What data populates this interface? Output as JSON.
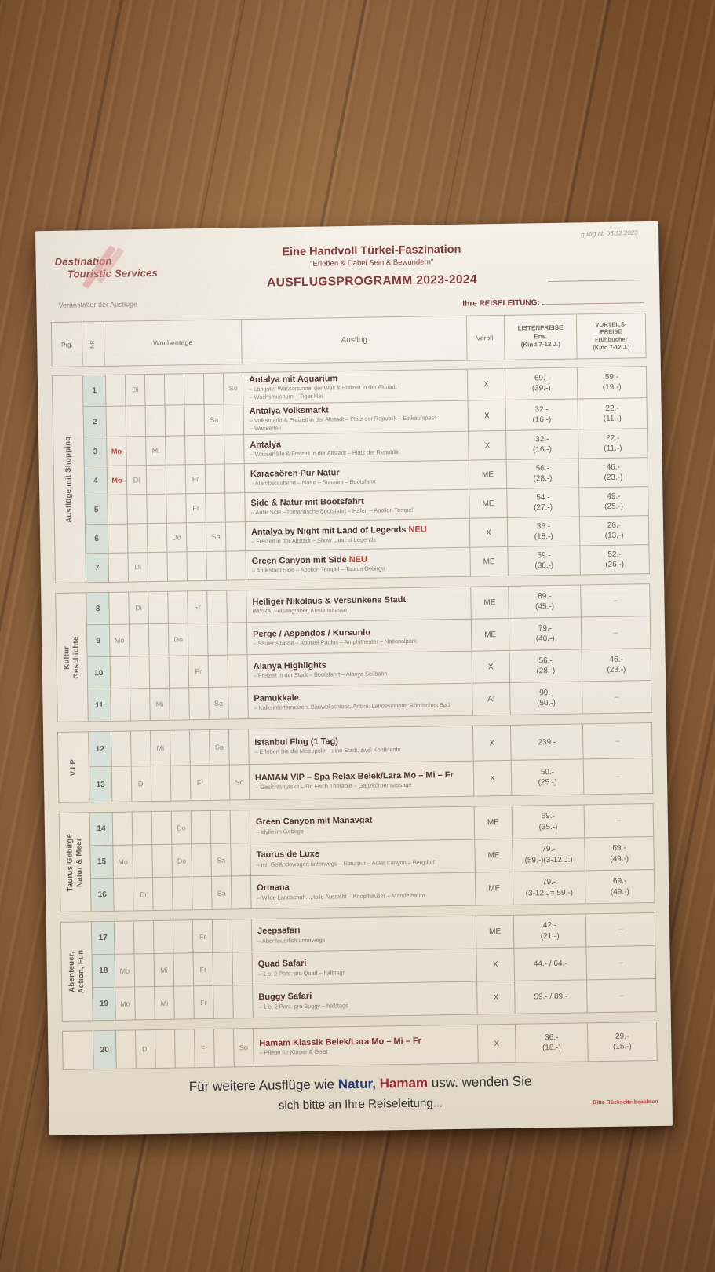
{
  "colors": {
    "maroon": "#7d3030",
    "red": "#c13a34",
    "blue": "#1d3a86",
    "hamam_red": "#9c2430",
    "paper": "#f2ede3",
    "wood": "#8a5a33",
    "nr_tint": "#dde8e0",
    "table_line": "#b6ac9b"
  },
  "header": {
    "valid_note": "gültig ab 05.12.2023",
    "logo_line1": "Destination",
    "logo_line2": "Touristic Services",
    "logo_sub": "Veranstalter der Ausflüge",
    "title1": "Eine Handvoll Türkei-Faszination",
    "title2": "“Erleben & Dabei Sein & Bewundern”",
    "title3": "AUSFLUGSPROGRAMM 2023-2024",
    "reiseleitung_label": "Ihre REISELEITUNG:"
  },
  "table": {
    "neu_label": "NEU",
    "columns": {
      "prg": "Prg.",
      "nr": "NR",
      "wochentage": "Wochentage",
      "ausflug": "Ausflug",
      "verpfl": "Verpfl.",
      "listenpreise": "LISTENPREISE\nErw.\n(Kind 7-12 J.)",
      "vorteilspreise": "VORTEILS-\nPREISE\nFrühbucher\n(Kind 7-12 J.)"
    }
  },
  "sections": [
    {
      "group": "Ausflüge mit Shopping",
      "rows": [
        {
          "nr": "1",
          "days": [
            "",
            "Di",
            "",
            "",
            "",
            "",
            "So"
          ],
          "title": "Antalya mit Aquarium",
          "desc": [
            "– Längster Wassertunnel der Welt & Freizeit in der Altstadt",
            "– Wachsmuseum – Tiger Hai"
          ],
          "verpfl": "X",
          "listen": [
            "69.-",
            "(39.-)"
          ],
          "vorteil": [
            "59.-",
            "(19.-)"
          ]
        },
        {
          "nr": "2",
          "days": [
            "",
            "",
            "",
            "",
            "",
            "Sa",
            ""
          ],
          "title": "Antalya Volksmarkt",
          "desc": [
            "– Volksmarkt & Freizeit in der Altstadt – Platz der Republik – Einkaufspass",
            "– Wasserfall"
          ],
          "verpfl": "X",
          "listen": [
            "32.-",
            "(16.-)"
          ],
          "vorteil": [
            "22.-",
            "(11.-)"
          ]
        },
        {
          "nr": "3",
          "days": [
            "Mo",
            "",
            "Mi",
            "",
            "",
            "",
            ""
          ],
          "red": [
            0
          ],
          "title": "Antalya",
          "desc": [
            "– Wasserfälle & Freizeit in der Altstadt – Platz der Republik"
          ],
          "verpfl": "X",
          "listen": [
            "32.-",
            "(16.-)"
          ],
          "vorteil": [
            "22.-",
            "(11.-)"
          ]
        },
        {
          "nr": "4",
          "days": [
            "Mo",
            "Di",
            "",
            "",
            "Fr",
            "",
            ""
          ],
          "red": [
            0
          ],
          "title": "Karacaören Pur Natur",
          "desc": [
            "– Atemberaubend – Natur – Stausee – Bootsfahrt"
          ],
          "verpfl": "ME",
          "listen": [
            "56.-",
            "(28.-)"
          ],
          "vorteil": [
            "46.-",
            "(23.-)"
          ]
        },
        {
          "nr": "5",
          "days": [
            "",
            "",
            "",
            "",
            "Fr",
            "",
            ""
          ],
          "title": "Side & Natur mit Bootsfahrt",
          "desc": [
            "– Antik Side – romantische Bootsfahrt – Hafen – Apollon Tempel"
          ],
          "verpfl": "ME",
          "listen": [
            "54.-",
            "(27.-)"
          ],
          "vorteil": [
            "49.-",
            "(25.-)"
          ]
        },
        {
          "nr": "6",
          "days": [
            "",
            "",
            "",
            "Do",
            "",
            "Sa",
            ""
          ],
          "title": "Antalya by Night mit Land of Legends",
          "neu": true,
          "desc": [
            "– Freizeit in der Altstadt – Show Land of Legends"
          ],
          "verpfl": "X",
          "listen": [
            "36.-",
            "(18.-)"
          ],
          "vorteil": [
            "26.-",
            "(13.-)"
          ]
        },
        {
          "nr": "7",
          "days": [
            "",
            "Di",
            "",
            "",
            "",
            "",
            ""
          ],
          "title": "Green Canyon mit Side",
          "neu": true,
          "desc": [
            "– Antikstadt Side – Apollon Tempel – Taurus Gebirge"
          ],
          "verpfl": "ME",
          "listen": [
            "59.-",
            "(30.-)"
          ],
          "vorteil": [
            "52.-",
            "(26.-)"
          ]
        }
      ]
    },
    {
      "group": "Kultur\nGeschichte",
      "rows": [
        {
          "nr": "8",
          "days": [
            "",
            "Di",
            "",
            "",
            "Fr",
            "",
            ""
          ],
          "title": "Heiliger Nikolaus & Versunkene Stadt",
          "desc": [
            "(MYRA, Felsengräber, Küstenstrasse)"
          ],
          "verpfl": "ME",
          "listen": [
            "89.-",
            "(45.-)"
          ],
          "vorteil": [
            "–"
          ]
        },
        {
          "nr": "9",
          "days": [
            "Mo",
            "",
            "",
            "Do",
            "",
            "",
            ""
          ],
          "title": "Perge / Aspendos / Kursunlu",
          "desc": [
            "– Säulenstrasse – Apostel Paulus – Amphitheater – Nationalpark"
          ],
          "verpfl": "ME",
          "listen": [
            "79.-",
            "(40.-)"
          ],
          "vorteil": [
            "–"
          ]
        },
        {
          "nr": "10",
          "days": [
            "",
            "",
            "",
            "",
            "Fr",
            "",
            ""
          ],
          "title": "Alanya Highlights",
          "desc": [
            "– Freizeit in der Stadt – Bootsfahrt – Alanya Seilbahn"
          ],
          "verpfl": "X",
          "listen": [
            "56.-",
            "(28.-)"
          ],
          "vorteil": [
            "46.-",
            "(23.-)"
          ]
        },
        {
          "nr": "11",
          "days": [
            "",
            "",
            "Mi",
            "",
            "",
            "Sa",
            ""
          ],
          "title": "Pamukkale",
          "desc": [
            "– Kalksinterterrassen, Bauwollschloss, Antike, Landesinnere, Römisches Bad"
          ],
          "verpfl": "AI",
          "listen": [
            "99.-",
            "(50.-)"
          ],
          "vorteil": [
            "–"
          ]
        }
      ]
    },
    {
      "group": "V.I.P",
      "rows": [
        {
          "nr": "12",
          "days": [
            "",
            "",
            "Mi",
            "",
            "",
            "Sa",
            ""
          ],
          "title": "Istanbul Flug (1 Tag)",
          "desc": [
            "– Erleben Sie die Metropole – eine Stadt, zwei Kontinente"
          ],
          "verpfl": "X",
          "listen": [
            "239.-"
          ],
          "vorteil": [
            "–"
          ]
        },
        {
          "nr": "13",
          "days": [
            "",
            "Di",
            "",
            "",
            "Fr",
            "",
            "So"
          ],
          "title": "HAMAM VIP – Spa Relax Belek/Lara Mo – Mi – Fr",
          "desc": [
            "– Gesichtsmaske – Dr. Fisch Therapie – Ganzkörpermassage"
          ],
          "verpfl": "X",
          "listen": [
            "50.-",
            "(25.-)"
          ],
          "vorteil": [
            "–"
          ]
        }
      ]
    },
    {
      "group": "Taurus Gebirge\nNatur & Meer",
      "rows": [
        {
          "nr": "14",
          "days": [
            "",
            "",
            "",
            "Do",
            "",
            "",
            ""
          ],
          "title": "Green Canyon mit Manavgat",
          "desc": [
            "– Idylle im Gebirge"
          ],
          "verpfl": "ME",
          "listen": [
            "69.-",
            "(35.-)"
          ],
          "vorteil": [
            "–"
          ]
        },
        {
          "nr": "15",
          "days": [
            "Mo",
            "",
            "",
            "Do",
            "",
            "Sa",
            ""
          ],
          "title": "Taurus de Luxe",
          "desc": [
            "– mit Geländewagen unterwegs – Naturpur – Adler Canyon – Bergdorf"
          ],
          "verpfl": "ME",
          "listen": [
            "79.-",
            "(59.-)(3-12 J.)"
          ],
          "vorteil": [
            "69.-",
            "(49.-)"
          ]
        },
        {
          "nr": "16",
          "days": [
            "",
            "Di",
            "",
            "",
            "",
            "Sa",
            ""
          ],
          "title": "Ormana",
          "desc": [
            "– Wilde Landschaft..., tolle Aussicht – Knopfhäuser – Mandelbaum"
          ],
          "verpfl": "ME",
          "listen": [
            "79.-",
            "(3-12 J= 59.-)"
          ],
          "vorteil": [
            "69.-",
            "(49.-)"
          ]
        }
      ]
    },
    {
      "group": "Abenteuer,\nAction, Fun",
      "rows": [
        {
          "nr": "17",
          "days": [
            "",
            "",
            "",
            "",
            "Fr",
            "",
            ""
          ],
          "title": "Jeepsafari",
          "desc": [
            "– Abenteuerlich unterwegs"
          ],
          "verpfl": "ME",
          "listen": [
            "42.-",
            "(21.-)"
          ],
          "vorteil": [
            "–"
          ]
        },
        {
          "nr": "18",
          "days": [
            "Mo",
            "",
            "Mi",
            "",
            "Fr",
            "",
            ""
          ],
          "title": "Quad Safari",
          "desc": [
            "– 1 o. 2 Pers. pro Quad – halbtags"
          ],
          "verpfl": "X",
          "listen": [
            "44.- / 64.-"
          ],
          "vorteil": [
            "–"
          ]
        },
        {
          "nr": "19",
          "days": [
            "Mo",
            "",
            "Mi",
            "",
            "Fr",
            "",
            ""
          ],
          "title": "Buggy Safari",
          "desc": [
            "– 1 o. 2 Pers. pro Buggy – halbtags"
          ],
          "verpfl": "X",
          "listen": [
            "59.- / 89.-"
          ],
          "vorteil": [
            "–"
          ]
        }
      ]
    },
    {
      "group": "",
      "rows": [
        {
          "nr": "20",
          "days": [
            "",
            "Di",
            "",
            "",
            "Fr",
            "",
            "So"
          ],
          "title": "Hamam Klassik Belek/Lara Mo – Mi – Fr",
          "highlight": true,
          "desc": [
            "– Pflege für Körper & Geist"
          ],
          "verpfl": "X",
          "listen": [
            "36.-",
            "(18.-)"
          ],
          "vorteil": [
            "29.-",
            "(15.-)"
          ]
        }
      ]
    }
  ],
  "footer": {
    "line1_pre": "Für weitere Ausflüge wie ",
    "line1_natur": "Natur,",
    "line1_hamam": "Hamam",
    "line1_post": " usw. wenden Sie",
    "line2": "sich bitte an Ihre Reiseleitung...",
    "note": "Bitte Rückseite beachten"
  }
}
